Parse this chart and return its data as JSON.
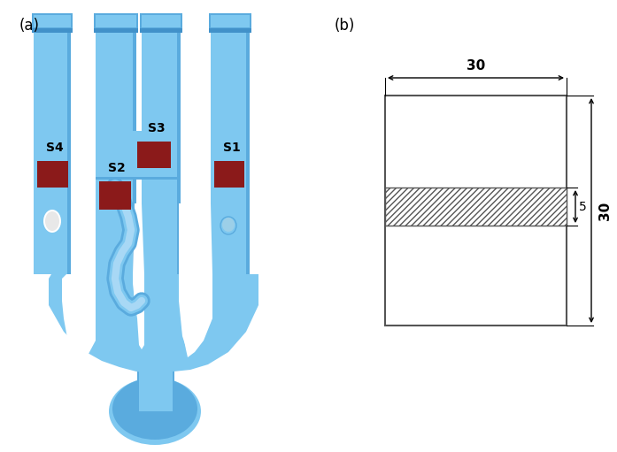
{
  "fig_width": 6.97,
  "fig_height": 5.11,
  "bg_color": "#ffffff",
  "blue_light": "#7ec8f0",
  "blue_mid": "#5aabde",
  "blue_dark": "#4191c9",
  "red_color": "#8b1a1a",
  "label_a": "(a)",
  "label_b": "(b)",
  "s_labels": [
    "S1",
    "S2",
    "S3",
    "S4"
  ],
  "dim_width": "30",
  "dim_height": "30",
  "dim_hatch": "5"
}
